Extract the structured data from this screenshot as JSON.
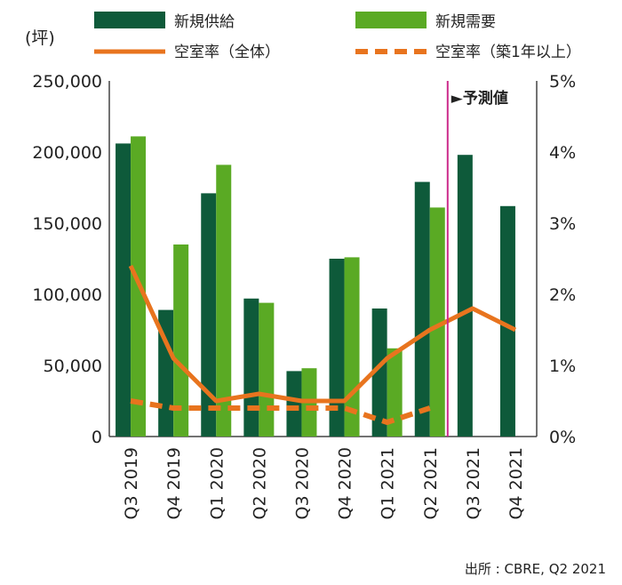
{
  "chart_data": {
    "type": "bar",
    "categories": [
      "Q3 2019",
      "Q4 2019",
      "Q1 2020",
      "Q2 2020",
      "Q3 2020",
      "Q4 2020",
      "Q1 2021",
      "Q2 2021",
      "Q3 2021",
      "Q4 2021"
    ],
    "y_unit": "(坪)",
    "ylim": [
      0,
      250000
    ],
    "yticks": [
      "0",
      "50,000",
      "100,000",
      "150,000",
      "200,000",
      "250,000"
    ],
    "y2lim": [
      0,
      5
    ],
    "y2ticks": [
      "0%",
      "1%",
      "2%",
      "3%",
      "4%",
      "5%"
    ],
    "series": [
      {
        "name": "新規供給",
        "kind": "bar",
        "color": "#0e5a3a",
        "values": [
          206000,
          89000,
          171000,
          97000,
          46000,
          125000,
          90000,
          179000,
          198000,
          162000
        ]
      },
      {
        "name": "新規需要",
        "kind": "bar",
        "color": "#5aaa24",
        "values": [
          211000,
          135000,
          191000,
          94000,
          48000,
          126000,
          62000,
          161000,
          null,
          null
        ]
      },
      {
        "name": "空室率（全体）",
        "kind": "line",
        "axis": "right",
        "style": "solid",
        "color": "#e8741e",
        "values": [
          2.4,
          1.1,
          0.5,
          0.6,
          0.5,
          0.5,
          1.1,
          1.5,
          1.8,
          1.5
        ]
      },
      {
        "name": "空室率（築1年以上）",
        "kind": "line",
        "axis": "right",
        "style": "dashed",
        "color": "#e8741e",
        "values": [
          0.5,
          0.4,
          0.4,
          0.4,
          0.4,
          0.4,
          0.2,
          0.4,
          null,
          null
        ]
      }
    ],
    "forecast_label": "►予測値",
    "forecast_start_index": 8,
    "forecast_line_color": "#cc2a8a",
    "legend_position": "top",
    "source": "出所 : CBRE, Q2 2021"
  }
}
